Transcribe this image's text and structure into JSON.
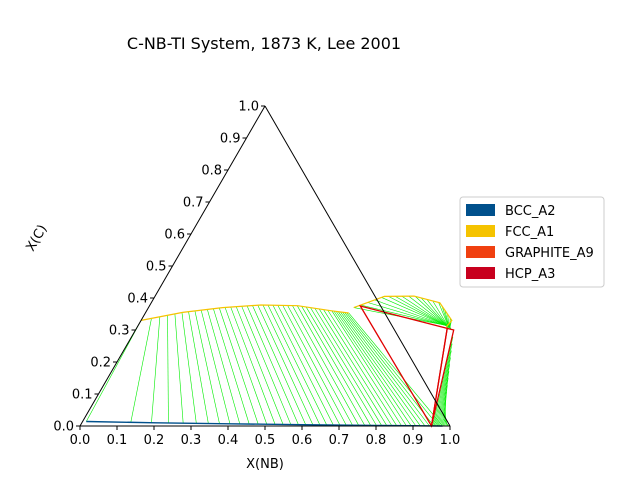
{
  "chart_data": {
    "type": "ternary",
    "title": "C-NB-TI System, 1873 K, Lee 2001",
    "xlabel": "X(NB)",
    "ylabel": "X(C)",
    "xlim": [
      0,
      1
    ],
    "ylim": [
      0,
      1
    ],
    "x_ticks": [
      "0.0",
      "0.1",
      "0.2",
      "0.3",
      "0.4",
      "0.5",
      "0.6",
      "0.7",
      "0.8",
      "0.9",
      "1.0"
    ],
    "y_ticks": [
      "0.0",
      "0.1",
      "0.2",
      "0.3",
      "0.4",
      "0.5",
      "0.6",
      "0.7",
      "0.8",
      "0.9",
      "1.0"
    ],
    "legend": {
      "position": "right",
      "entries": [
        {
          "name": "BCC_A2",
          "color": "#00508c"
        },
        {
          "name": "FCC_A1",
          "color": "#f5c300"
        },
        {
          "name": "GRAPHITE_A9",
          "color": "#f04010"
        },
        {
          "name": "HCP_A3",
          "color": "#c8001e"
        }
      ]
    },
    "tie_line_color": "#00ee00",
    "phase_boundaries": {
      "fcc_a1_ti_nb_side": [
        [
          0.0,
          0.33
        ],
        [
          0.1,
          0.355
        ],
        [
          0.2,
          0.37
        ],
        [
          0.3,
          0.378
        ],
        [
          0.4,
          0.376
        ],
        [
          0.5,
          0.36
        ],
        [
          0.55,
          0.353
        ]
      ],
      "fcc_a1_nb_lobe": [
        [
          0.555,
          0.37
        ],
        [
          0.62,
          0.405
        ],
        [
          0.7,
          0.406
        ],
        [
          0.78,
          0.385
        ],
        [
          0.84,
          0.33
        ],
        [
          0.835,
          0.31
        ]
      ],
      "bcc_a2": [
        [
          0.01,
          0.014
        ],
        [
          0.2,
          0.01
        ],
        [
          0.4,
          0.007
        ],
        [
          0.6,
          0.004
        ],
        [
          0.8,
          0.002
        ],
        [
          0.98,
          0.0
        ]
      ]
    },
    "three_phase_triangles": [
      [
        [
          0.57,
          0.375
        ],
        [
          0.84,
          0.305
        ],
        [
          0.95,
          0.0
        ]
      ],
      [
        [
          0.84,
          0.305
        ],
        [
          0.86,
          0.3
        ],
        [
          0.95,
          0.0
        ]
      ]
    ]
  }
}
